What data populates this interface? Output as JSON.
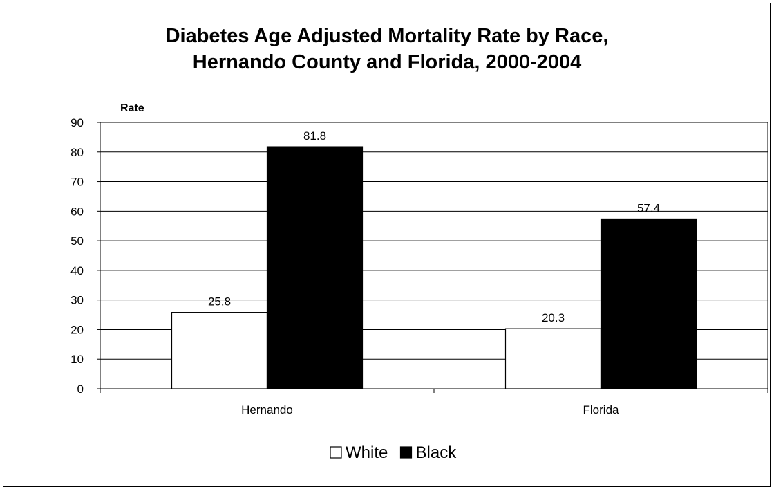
{
  "chart_data": {
    "type": "bar",
    "title_line1": "Diabetes Age Adjusted Mortality Rate by Race,",
    "title_line2": "Hernando County and Florida, 2000-2004",
    "ylabel": "Rate",
    "xlabel": "",
    "categories": [
      "Hernando",
      "Florida"
    ],
    "series": [
      {
        "name": "White",
        "values": [
          25.8,
          20.3
        ],
        "color": "#ffffff"
      },
      {
        "name": "Black",
        "values": [
          81.8,
          57.4
        ],
        "color": "#000000"
      }
    ],
    "data_labels": [
      [
        "25.8",
        "20.3"
      ],
      [
        "81.8",
        "57.4"
      ]
    ],
    "ylim": [
      0,
      90
    ],
    "yticks": [
      0,
      10,
      20,
      30,
      40,
      50,
      60,
      70,
      80,
      90
    ],
    "grid": true,
    "legend_position": "bottom"
  }
}
